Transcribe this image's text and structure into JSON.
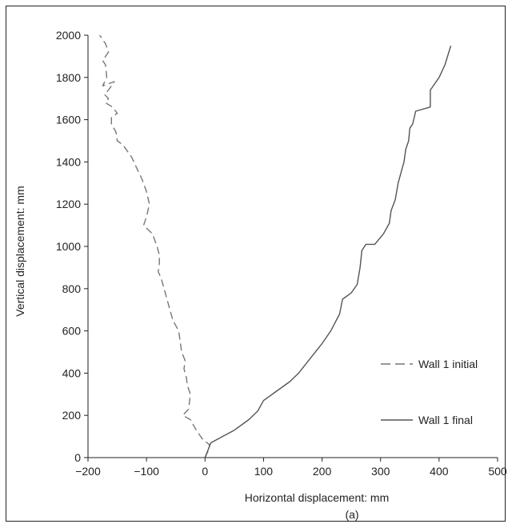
{
  "chart_data": {
    "type": "line",
    "xlabel": "Horizontal displacement: mm",
    "ylabel": "Vertical displacement: mm",
    "caption": "(a)",
    "xlim": [
      -200,
      500
    ],
    "ylim": [
      0,
      2000
    ],
    "xticks": [
      -200,
      -100,
      0,
      100,
      200,
      300,
      400,
      500
    ],
    "yticks": [
      0,
      200,
      400,
      600,
      800,
      1000,
      1200,
      1400,
      1600,
      1800,
      2000
    ],
    "xtick_labels": [
      "−200",
      "−100",
      "0",
      "100",
      "200",
      "300",
      "400",
      "500"
    ],
    "ytick_labels": [
      "0",
      "200",
      "400",
      "600",
      "800",
      "1000",
      "1200",
      "1400",
      "1600",
      "1800",
      "2000"
    ],
    "grid": false,
    "legend_position": "right",
    "series": [
      {
        "name": "Wall 1 initial",
        "style": "dashed",
        "color": "#777777",
        "points": [
          [
            0,
            0
          ],
          [
            5,
            30
          ],
          [
            8,
            60
          ],
          [
            -5,
            90
          ],
          [
            -15,
            130
          ],
          [
            -25,
            180
          ],
          [
            -38,
            200
          ],
          [
            -28,
            230
          ],
          [
            -25,
            300
          ],
          [
            -30,
            340
          ],
          [
            -32,
            380
          ],
          [
            -36,
            420
          ],
          [
            -34,
            460
          ],
          [
            -40,
            500
          ],
          [
            -45,
            600
          ],
          [
            -55,
            650
          ],
          [
            -60,
            700
          ],
          [
            -70,
            800
          ],
          [
            -75,
            850
          ],
          [
            -80,
            880
          ],
          [
            -78,
            920
          ],
          [
            -78,
            960
          ],
          [
            -82,
            1000
          ],
          [
            -90,
            1060
          ],
          [
            -105,
            1100
          ],
          [
            -100,
            1140
          ],
          [
            -95,
            1200
          ],
          [
            -100,
            1260
          ],
          [
            -108,
            1320
          ],
          [
            -115,
            1360
          ],
          [
            -125,
            1420
          ],
          [
            -140,
            1480
          ],
          [
            -150,
            1500
          ],
          [
            -152,
            1540
          ],
          [
            -160,
            1580
          ],
          [
            -160,
            1610
          ],
          [
            -150,
            1630
          ],
          [
            -158,
            1660
          ],
          [
            -170,
            1680
          ],
          [
            -165,
            1700
          ],
          [
            -172,
            1720
          ],
          [
            -165,
            1740
          ],
          [
            -155,
            1780
          ],
          [
            -175,
            1760
          ],
          [
            -168,
            1800
          ],
          [
            -170,
            1860
          ],
          [
            -175,
            1880
          ],
          [
            -165,
            1920
          ],
          [
            -170,
            1960
          ],
          [
            -180,
            2000
          ]
        ]
      },
      {
        "name": "Wall 1 final",
        "style": "solid",
        "color": "#555555",
        "points": [
          [
            0,
            0
          ],
          [
            10,
            70
          ],
          [
            30,
            100
          ],
          [
            50,
            130
          ],
          [
            75,
            180
          ],
          [
            90,
            220
          ],
          [
            100,
            270
          ],
          [
            125,
            320
          ],
          [
            145,
            360
          ],
          [
            160,
            400
          ],
          [
            180,
            470
          ],
          [
            200,
            540
          ],
          [
            215,
            600
          ],
          [
            230,
            680
          ],
          [
            235,
            750
          ],
          [
            250,
            780
          ],
          [
            260,
            820
          ],
          [
            265,
            900
          ],
          [
            268,
            980
          ],
          [
            275,
            1010
          ],
          [
            290,
            1010
          ],
          [
            305,
            1060
          ],
          [
            315,
            1110
          ],
          [
            318,
            1170
          ],
          [
            325,
            1220
          ],
          [
            330,
            1300
          ],
          [
            335,
            1350
          ],
          [
            340,
            1400
          ],
          [
            343,
            1460
          ],
          [
            348,
            1500
          ],
          [
            350,
            1560
          ],
          [
            355,
            1580
          ],
          [
            360,
            1640
          ],
          [
            385,
            1660
          ],
          [
            385,
            1740
          ],
          [
            400,
            1800
          ],
          [
            410,
            1860
          ],
          [
            420,
            1950
          ]
        ]
      }
    ]
  }
}
